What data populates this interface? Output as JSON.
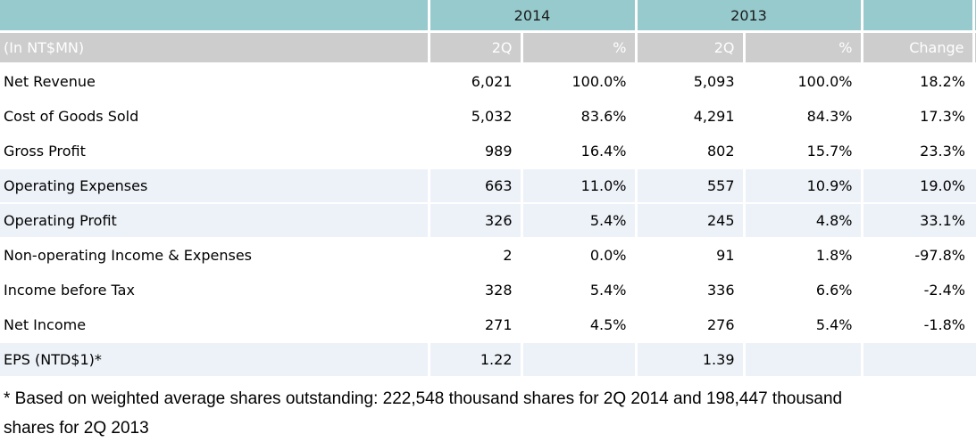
{
  "table": {
    "unit_label": "(In NT$MN)",
    "col_groups": [
      {
        "label": "2014"
      },
      {
        "label": "2013"
      }
    ],
    "sub_headers": [
      "2Q",
      "%",
      "2Q",
      "%",
      "Change"
    ],
    "rows": [
      {
        "label": "Net Revenue",
        "values": [
          "6,021",
          "100.0%",
          "5,093",
          "100.0%",
          "18.2%"
        ],
        "shaded": false
      },
      {
        "label": "Cost of Goods Sold",
        "values": [
          "5,032",
          "83.6%",
          "4,291",
          "84.3%",
          "17.3%"
        ],
        "shaded": false
      },
      {
        "label": "Gross Profit",
        "values": [
          "989",
          "16.4%",
          "802",
          "15.7%",
          "23.3%"
        ],
        "shaded": false
      },
      {
        "label": "Operating Expenses",
        "values": [
          "663",
          "11.0%",
          "557",
          "10.9%",
          "19.0%"
        ],
        "shaded": true
      },
      {
        "label": "Operating Profit",
        "values": [
          "326",
          "5.4%",
          "245",
          "4.8%",
          "33.1%"
        ],
        "shaded": true
      },
      {
        "label": "Non-operating Income & Expenses",
        "values": [
          "2",
          "0.0%",
          "91",
          "1.8%",
          "-97.8%"
        ],
        "shaded": false
      },
      {
        "label": "Income before Tax",
        "values": [
          "328",
          "5.4%",
          "336",
          "6.6%",
          "-2.4%"
        ],
        "shaded": false
      },
      {
        "label": "Net Income",
        "values": [
          "271",
          "4.5%",
          "276",
          "5.4%",
          "-1.8%"
        ],
        "shaded": false
      },
      {
        "label": "EPS (NTD$1)*",
        "values": [
          "1.22",
          "",
          "1.39",
          "",
          ""
        ],
        "shaded": true
      }
    ],
    "footnote_lines": [
      "* Based on weighted average shares outstanding: 222,548 thousand shares for 2Q 2014 and 198,447 thousand",
      "shares for 2Q 2013"
    ]
  },
  "colors": {
    "teal_header": "#97cacc",
    "gray_header": "#cdcdcd",
    "shaded_row": "#edf2f8",
    "divider": "#ffffff"
  }
}
